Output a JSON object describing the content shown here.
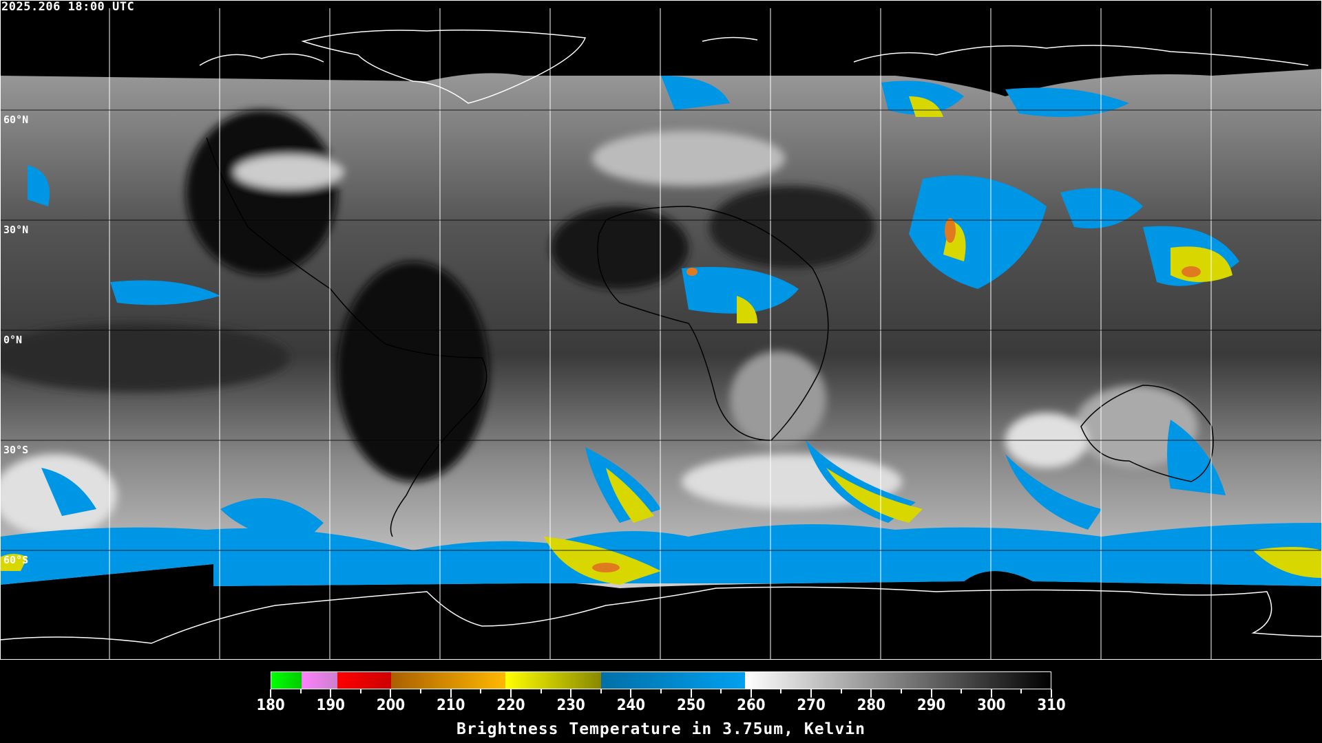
{
  "header": {
    "timestamp": "2025.206 18:00 UTC"
  },
  "map": {
    "lat_labels": [
      "60°N",
      "30°N",
      "0°N",
      "30°S",
      "60°S"
    ],
    "grid_color": "#ffffff",
    "coast_color_land": "#000000",
    "coast_color_ocean": "#ffffff"
  },
  "colorbar": {
    "min": 180,
    "max": 310,
    "tick_labels": [
      "180",
      "190",
      "200",
      "210",
      "220",
      "230",
      "240",
      "250",
      "260",
      "270",
      "280",
      "290",
      "300",
      "310"
    ],
    "segments": [
      {
        "from": 180,
        "to": 185,
        "c1": "#00ff00",
        "c2": "#00cc00"
      },
      {
        "from": 185,
        "to": 191,
        "c1": "#ff80ff",
        "c2": "#cc80cc"
      },
      {
        "from": 191,
        "to": 200,
        "c1": "#ff0000",
        "c2": "#cc0000"
      },
      {
        "from": 200,
        "to": 219,
        "c1": "#aa6000",
        "c2": "#ffb800"
      },
      {
        "from": 219,
        "to": 235,
        "c1": "#ffff00",
        "c2": "#888800"
      },
      {
        "from": 235,
        "to": 259,
        "c1": "#0070a8",
        "c2": "#00a0f0"
      },
      {
        "from": 259,
        "to": 310,
        "c1": "#ffffff",
        "c2": "#000000"
      }
    ],
    "label": "Brightness Temperature in 3.75um, Kelvin"
  }
}
